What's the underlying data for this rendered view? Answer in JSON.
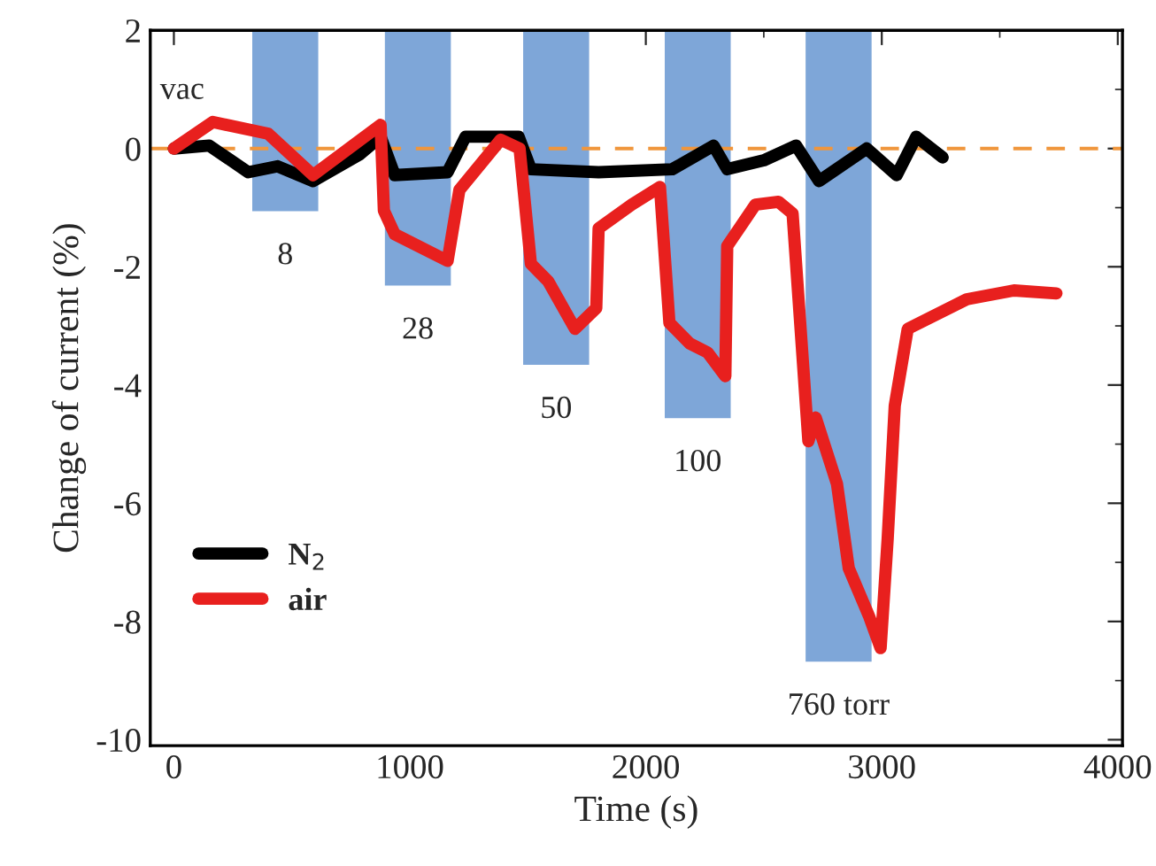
{
  "chart_data": {
    "type": "line",
    "xlabel": "Time (s)",
    "ylabel": "Change of current (%)",
    "xlim": [
      -100,
      4020
    ],
    "ylim": [
      -10.1,
      2.0
    ],
    "xticks": [
      0,
      1000,
      2000,
      3000,
      4000
    ],
    "yticks": [
      -10,
      -8,
      -6,
      -4,
      -2,
      0,
      2
    ],
    "grid": false,
    "legend": "bottom left",
    "line_style": "solid",
    "marker": "none",
    "series": [
      {
        "type": "bar",
        "color": "#7ea6d8",
        "x": [
          472,
          1034,
          1620,
          2220,
          2817
        ],
        "base": [
          2,
          2,
          2,
          2,
          2
        ],
        "values": [
          -3.08,
          -4.34,
          -5.68,
          -6.58,
          -10.7
        ]
      },
      {
        "name": "N$_{2}$",
        "color": "#000000",
        "x": [
          0,
          150,
          315,
          440,
          590,
          787,
          876,
          936,
          1160,
          1236,
          1461,
          1513,
          1800,
          2112,
          2287,
          2345,
          2500,
          2637,
          2734,
          2936,
          3063,
          3146,
          3258
        ],
        "values": [
          0,
          0.05,
          -0.4,
          -0.3,
          -0.55,
          -0.1,
          0.2,
          -0.45,
          -0.4,
          0.2,
          0.2,
          -0.35,
          -0.4,
          -0.35,
          0.05,
          -0.35,
          -0.2,
          0.05,
          -0.55,
          0,
          -0.45,
          0.2,
          -0.15
        ]
      },
      {
        "name": "air",
        "color": "#e8201e",
        "x": [
          0,
          165,
          400,
          590,
          876,
          890,
          936,
          1160,
          1210,
          1385,
          1465,
          1513,
          1587,
          1700,
          1790,
          1800,
          1940,
          2060,
          2100,
          2187,
          2262,
          2337,
          2345,
          2464,
          2562,
          2622,
          2689,
          2720,
          2810,
          2860,
          2945,
          2995,
          3025,
          3055,
          3110,
          3360,
          3560,
          3740
        ],
        "values": [
          0,
          0.45,
          0.25,
          -0.45,
          0.4,
          -1.05,
          -1.45,
          -1.9,
          -0.7,
          0.15,
          0,
          -1.95,
          -2.25,
          -3.05,
          -2.7,
          -1.35,
          -0.95,
          -0.65,
          -2.95,
          -3.3,
          -3.45,
          -3.85,
          -1.65,
          -0.95,
          -0.9,
          -1.1,
          -4.95,
          -4.55,
          -5.67,
          -7.1,
          -7.9,
          -8.45,
          -6.6,
          -4.35,
          -3.05,
          -2.55,
          -2.4,
          -2.45
        ]
      }
    ],
    "ref_lines": [
      {
        "axis": "y",
        "value": 0,
        "color": "#f0963c",
        "line_style": "dashed"
      }
    ],
    "annotations": [
      "vac",
      {
        "text": "8",
        "x": 472,
        "y": -1.08
      },
      {
        "text": "28",
        "x": 1034,
        "y": -2.34
      },
      {
        "text": "50",
        "x": 1620,
        "y": -3.68
      },
      {
        "text": "100",
        "x": 2220,
        "y": -4.58
      },
      {
        "text": "760 torr",
        "x": 2817,
        "y": -8.7
      }
    ]
  }
}
